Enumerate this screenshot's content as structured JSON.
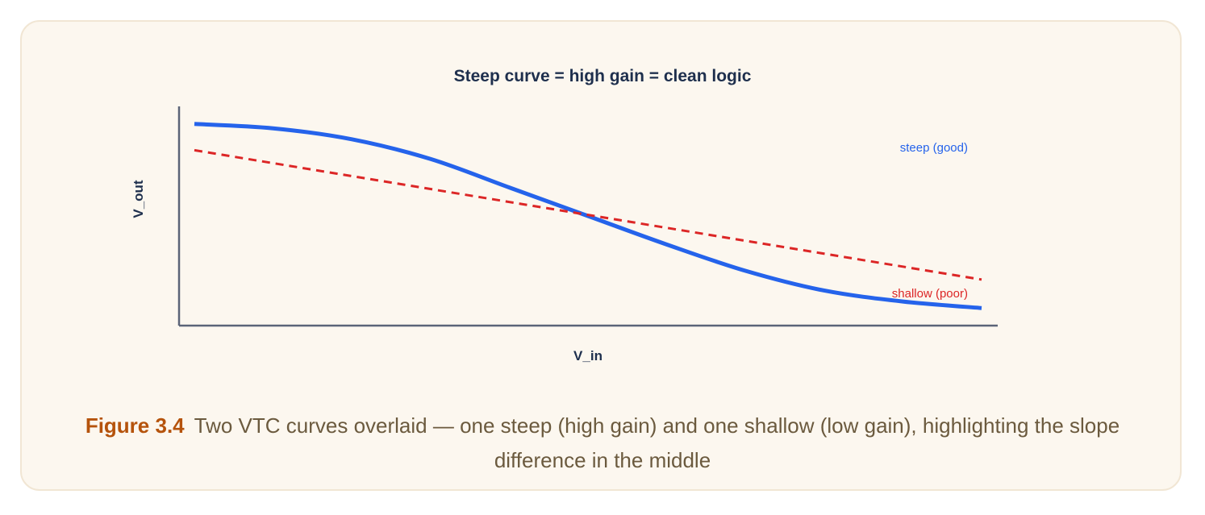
{
  "figure": {
    "label": "Figure 3.4",
    "caption": "Two VTC curves overlaid — one steep (high gain) and one shallow (low gain), highlighting the slope difference in the middle"
  },
  "chart_data": {
    "type": "line",
    "title": "Steep curve = high gain = clean logic",
    "xlabel": "V_in",
    "ylabel": "V_out",
    "xlim": [
      0,
      1
    ],
    "ylim": [
      0,
      1
    ],
    "grid": false,
    "series": [
      {
        "name": "steep (good)",
        "color": "#2563eb",
        "style": "solid",
        "points": [
          [
            0.0,
            0.92
          ],
          [
            0.1,
            0.9
          ],
          [
            0.2,
            0.85
          ],
          [
            0.3,
            0.76
          ],
          [
            0.4,
            0.63
          ],
          [
            0.5,
            0.5
          ],
          [
            0.6,
            0.37
          ],
          [
            0.7,
            0.25
          ],
          [
            0.8,
            0.16
          ],
          [
            0.9,
            0.11
          ],
          [
            1.0,
            0.08
          ]
        ]
      },
      {
        "name": "shallow (poor)",
        "color": "#dc2626",
        "style": "dashed",
        "points": [
          [
            0.0,
            0.8
          ],
          [
            1.0,
            0.21
          ]
        ]
      }
    ]
  }
}
